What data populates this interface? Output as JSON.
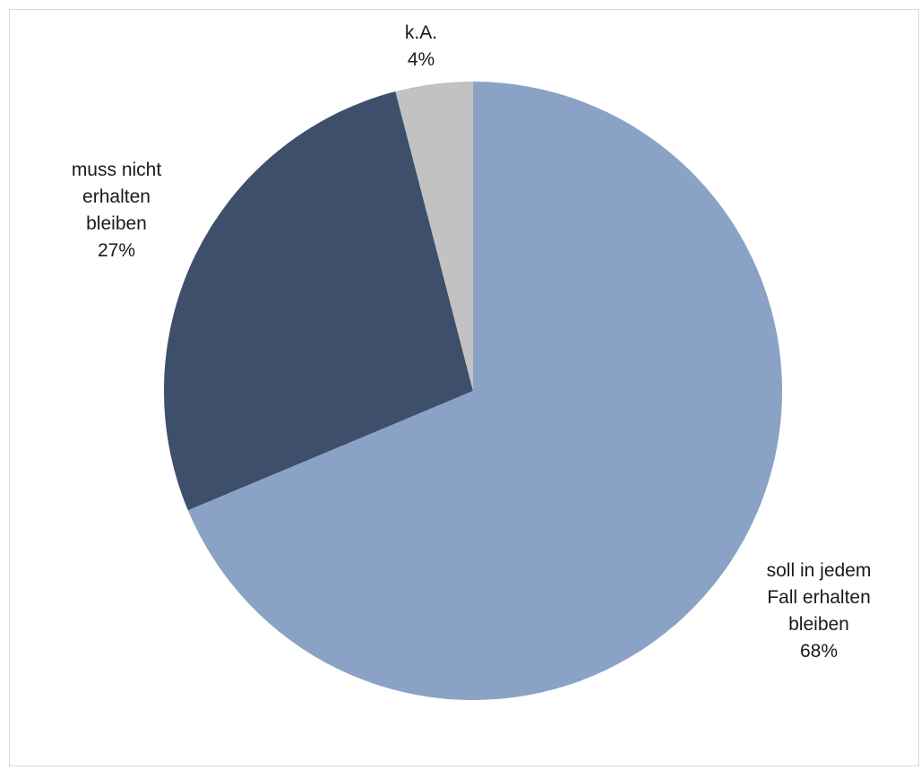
{
  "chart_data": {
    "type": "pie",
    "title": "",
    "start_angle_deg": 0,
    "direction": "clockwise",
    "legend": "none",
    "slices": [
      {
        "name": "soll in jedem Fall erhalten bleiben",
        "label_lines": [
          "soll in jedem",
          "Fall erhalten",
          "bleiben"
        ],
        "value": 68,
        "value_label": "68%",
        "color": "#8AA2C6"
      },
      {
        "name": "muss nicht erhalten bleiben",
        "label_lines": [
          "muss nicht",
          "erhalten",
          "bleiben"
        ],
        "value": 27,
        "value_label": "27%",
        "color": "#3E4F6B"
      },
      {
        "name": "k.A.",
        "label_lines": [
          "k.A."
        ],
        "value": 4,
        "value_label": "4%",
        "color": "#C2C2C2"
      }
    ]
  }
}
